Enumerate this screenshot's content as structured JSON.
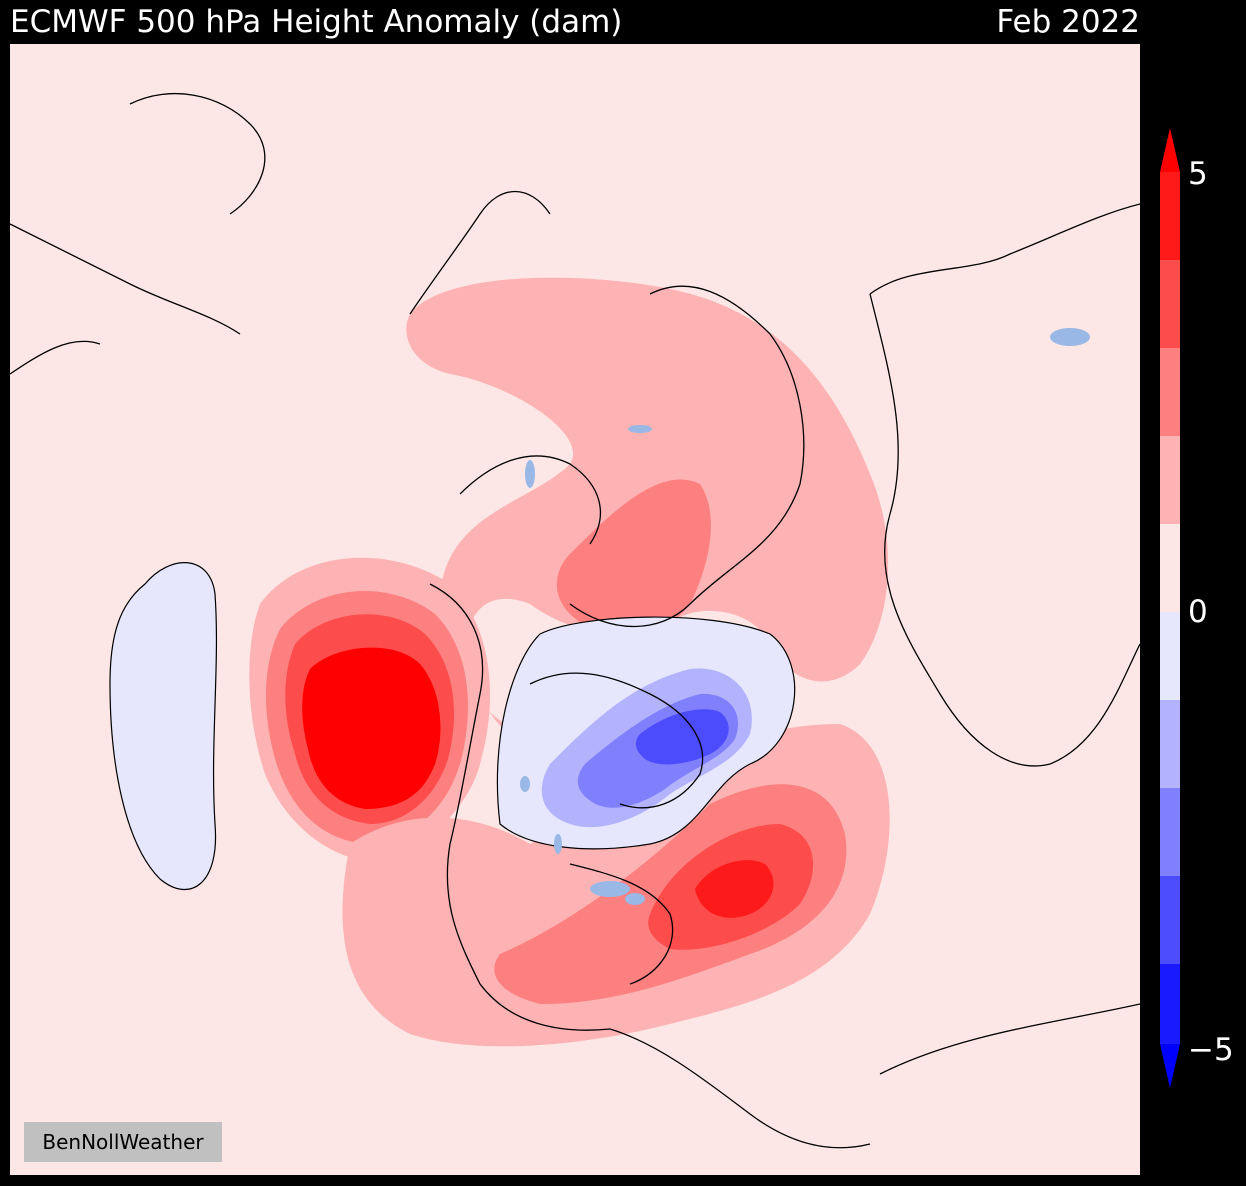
{
  "header": {
    "title": "ECMWF 500 hPa Height Anomaly (dam)",
    "date": "Feb 2022"
  },
  "credit": "BenNollWeather",
  "colorbar": {
    "max_label": "5",
    "mid_label": "0",
    "min_label": "−5",
    "levels": [
      -5,
      -4,
      -3,
      -2,
      -1,
      0,
      1,
      2,
      3,
      4,
      5
    ],
    "colors_positive": [
      "#fde6e6",
      "#fdb3b3",
      "#fd8080",
      "#fd4c4c",
      "#fd1a1a",
      "#ff0000"
    ],
    "colors_negative": [
      "#e6e6fd",
      "#b3b3fd",
      "#8080fd",
      "#4c4cfd",
      "#1a1aff",
      "#0000ff"
    ]
  },
  "map": {
    "projection": "north-polar-stereographic",
    "background_color": "#fde6e6",
    "coastline_color": "#000000",
    "lake_color": "#99b8e6",
    "zero_contour_color": "#000000"
  }
}
